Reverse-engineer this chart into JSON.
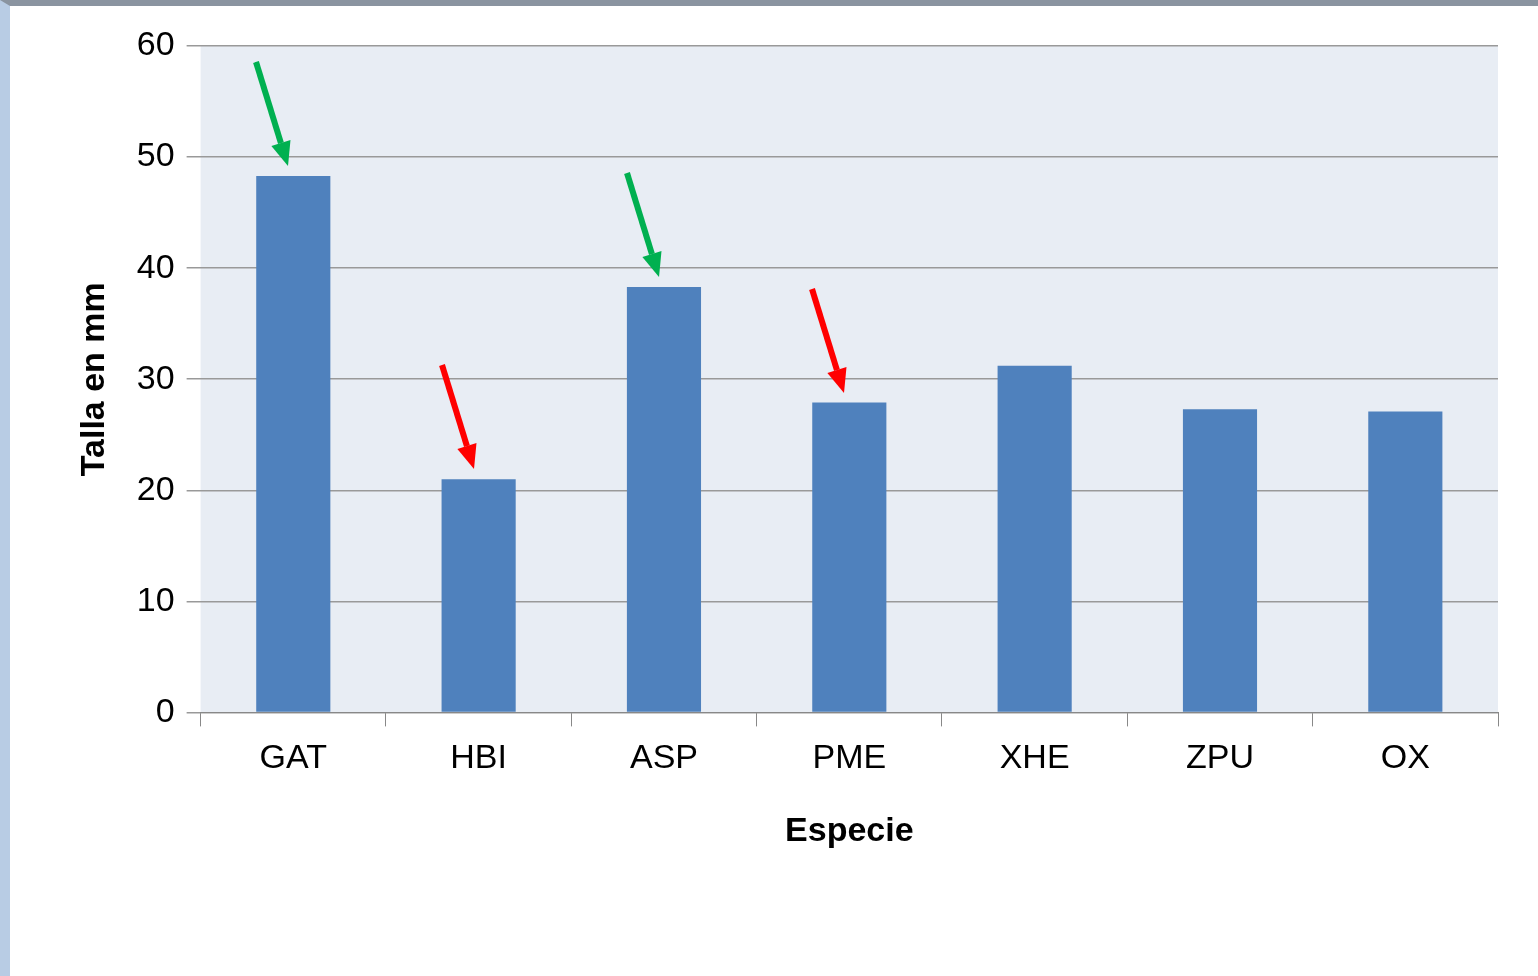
{
  "chart_data": {
    "type": "bar",
    "xlabel": "Especie",
    "ylabel": "Talla en mm",
    "categories": [
      "GAT",
      "HBI",
      "ASP",
      "PME",
      "XHE",
      "ZPU",
      "OX"
    ],
    "values": [
      48.3,
      21,
      38.3,
      27.9,
      31.2,
      27.3,
      27.1
    ],
    "color": "#4f81bd",
    "ylim": [
      0,
      60
    ],
    "yticks": [
      0,
      10,
      20,
      30,
      40,
      50,
      60
    ],
    "grid": "y"
  }
}
